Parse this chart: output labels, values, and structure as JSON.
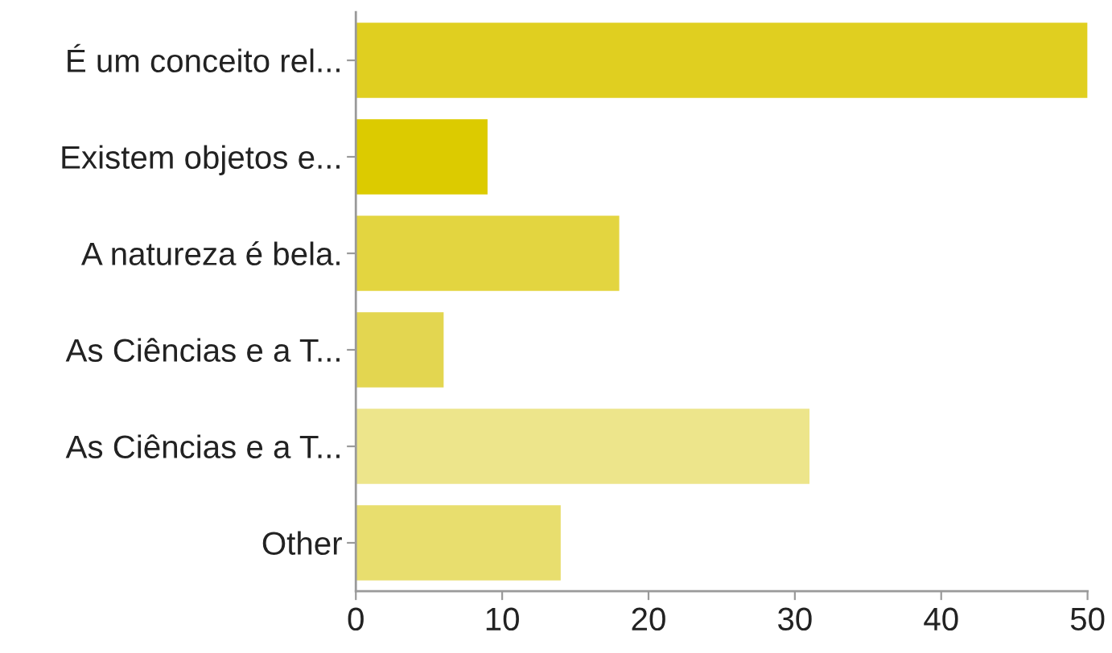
{
  "chart_data": {
    "type": "bar",
    "orientation": "horizontal",
    "categories": [
      "É um conceito rel...",
      "Existem objetos e...",
      "A natureza é bela.",
      "As Ciências e a T...",
      "As Ciências e a T...",
      "Other"
    ],
    "values": [
      50,
      9,
      18,
      6,
      31,
      14
    ],
    "colors": [
      "#e0cf20",
      "#dccb00",
      "#e3d540",
      "#e3d650",
      "#ede58b",
      "#e8de6e"
    ],
    "xlim": [
      0,
      50
    ],
    "xticks": [
      0,
      10,
      20,
      30,
      40,
      50
    ],
    "grid": false
  }
}
